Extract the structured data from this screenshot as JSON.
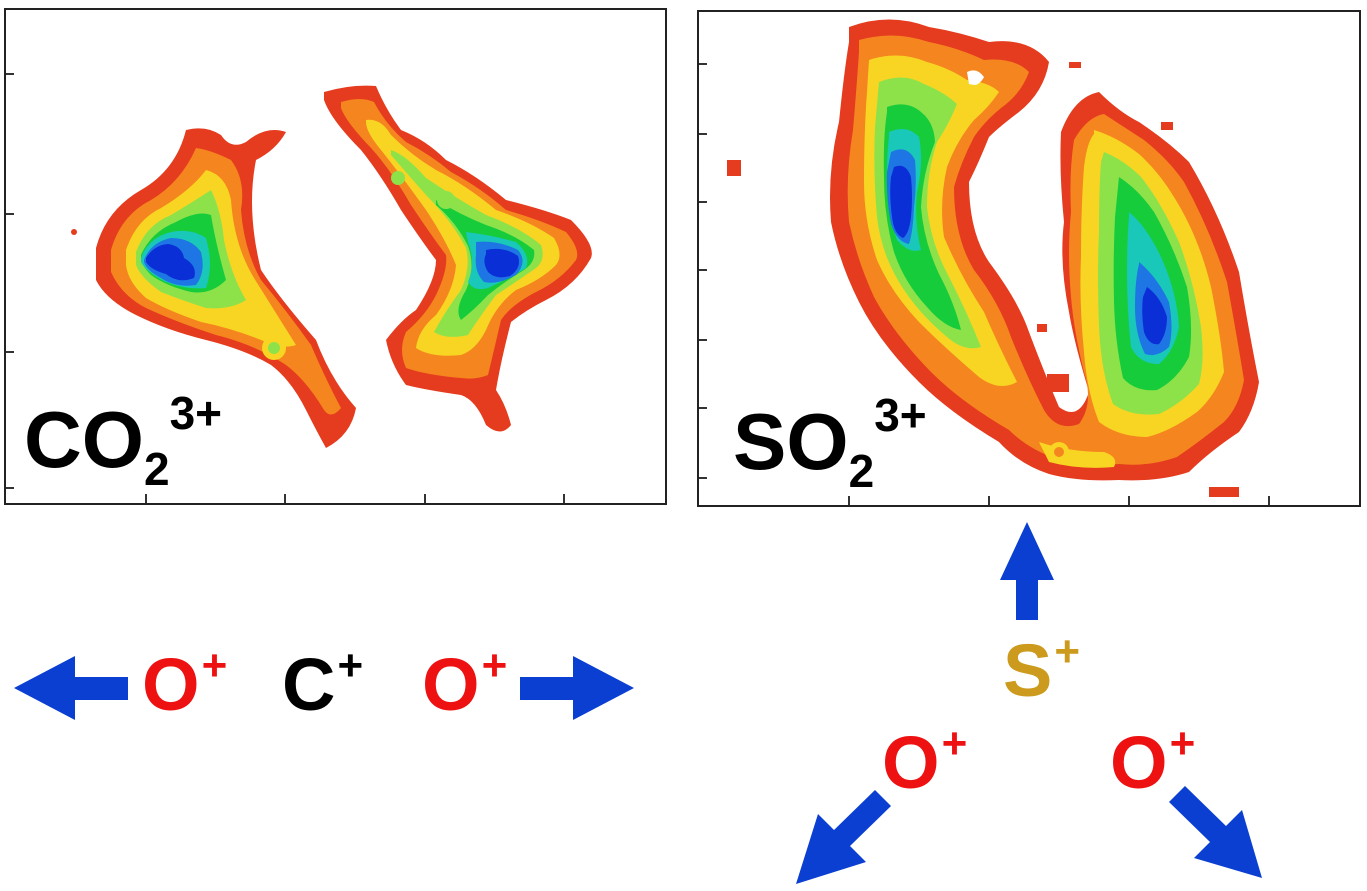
{
  "panels": [
    {
      "id": "co2",
      "formula_base": "CO",
      "formula_sub": "2",
      "formula_charge": "3+"
    },
    {
      "id": "so2",
      "formula_base": "SO",
      "formula_sub": "2",
      "formula_charge": "3+"
    }
  ],
  "linear_fragments": {
    "left_oxygen": {
      "symbol": "O",
      "charge": "+"
    },
    "carbon": {
      "symbol": "C",
      "charge": "+"
    },
    "right_oxygen": {
      "symbol": "O",
      "charge": "+"
    }
  },
  "bent_fragments": {
    "sulfur": {
      "symbol": "S",
      "charge": "+"
    },
    "left_oxygen": {
      "symbol": "O",
      "charge": "+"
    },
    "right_oxygen": {
      "symbol": "O",
      "charge": "+"
    }
  },
  "colors": {
    "oxygen": "#ee1111",
    "carbon": "#000000",
    "sulfur": "#cc9a1c",
    "arrow": "#0a3fd1",
    "density_scale": [
      "#e53b1e",
      "#f5851e",
      "#f9d523",
      "#8de24a",
      "#16cc3a",
      "#19c8b8",
      "#1d76e4",
      "#0a2fd6"
    ]
  }
}
